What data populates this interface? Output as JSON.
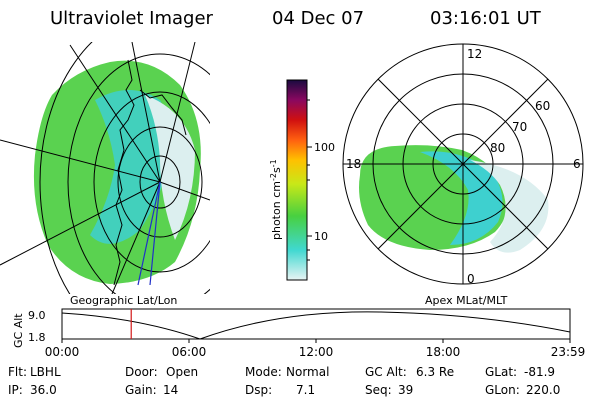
{
  "header": {
    "instrument": "Ultraviolet Imager",
    "date": "04 Dec 07",
    "time": "03:16:01 UT"
  },
  "left_panel": {
    "caption": "Geographic Lat/Lon"
  },
  "colorbar": {
    "unit_prefix": "photon cm",
    "exp1": "-2",
    "mid": "s",
    "exp2": "-1",
    "ticks": [
      "100",
      "10"
    ]
  },
  "right_panel": {
    "caption": "Apex  MLat/MLT",
    "mlt_labels": [
      "12",
      "18",
      "6",
      "0"
    ],
    "lat_labels": [
      "60",
      "70",
      "80"
    ]
  },
  "altitude_strip": {
    "ylabel": "GC Alt",
    "y_ticks": [
      "9.0",
      "1.8"
    ],
    "x_ticks": [
      "00:00",
      "06:00",
      "12:00",
      "18:00",
      "23:59"
    ],
    "marker_time_hours": 3.27
  },
  "footer": [
    [
      {
        "label": "Flt:",
        "value": "LBHL"
      },
      {
        "label": "Door:",
        "value": "Open"
      },
      {
        "label": "Mode:",
        "value": "Normal"
      },
      {
        "label": "GC Alt:",
        "value": "6.3 Re"
      },
      {
        "label": "GLat:",
        "value": "-81.9"
      }
    ],
    [
      {
        "label": "IP:",
        "value": "36.0"
      },
      {
        "label": "Gain:",
        "value": "14"
      },
      {
        "label": "Dsp:",
        "value": "7.1"
      },
      {
        "label": "Seq:",
        "value": "39"
      },
      {
        "label": "GLon:",
        "value": "220.0"
      }
    ]
  ],
  "colors": {
    "grid": "#000000",
    "low": "#d6eff0",
    "cyan": "#36d6d2",
    "green": "#58d64e",
    "marker": "#d21818"
  }
}
